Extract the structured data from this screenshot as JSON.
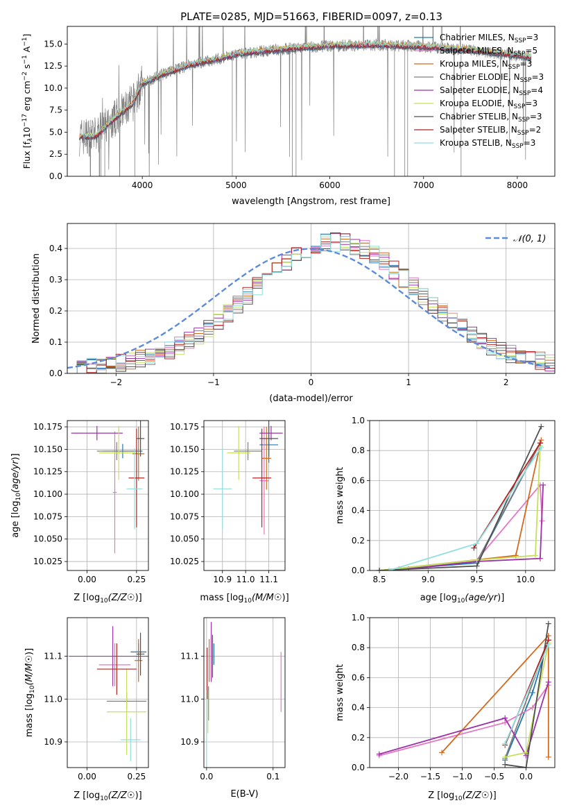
{
  "figure_title": "PLATE=0285, MJD=51663, FIBERID=0097, z=0.13",
  "legend_entries": [
    {
      "name": "Chabrier MILES, N",
      "sub": "SSP",
      "tail": "=3",
      "color": "#1f77b4"
    },
    {
      "name": "Salpeter MILES, N",
      "sub": "SSP",
      "tail": "=5",
      "color": "#e377c2"
    },
    {
      "name": "Kroupa MILES, N",
      "sub": "SSP",
      "tail": "=3",
      "color": "#d2691e"
    },
    {
      "name": "Chabrier ELODIE, N",
      "sub": "SSP",
      "tail": "=3",
      "color": "#7f7f7f"
    },
    {
      "name": "Salpeter ELODIE, N",
      "sub": "SSP",
      "tail": "=4",
      "color": "#9b30a8"
    },
    {
      "name": "Kroupa ELODIE, N",
      "sub": "SSP",
      "tail": "=3",
      "color": "#c5e05a"
    },
    {
      "name": "Chabrier STELIB, N",
      "sub": "SSP",
      "tail": "=3",
      "color": "#505050"
    },
    {
      "name": "Salpeter STELIB, N",
      "sub": "SSP",
      "tail": "=2",
      "color": "#b22222"
    },
    {
      "name": "Kroupa STELIB, N",
      "sub": "SSP",
      "tail": "=3",
      "color": "#8fdfe0"
    }
  ],
  "chart_data": [
    {
      "id": "spectrum",
      "type": "line",
      "xlabel": "wavelength [Angstrom, rest frame]",
      "ylabel": "Flux [f",
      "ylabel_parts": [
        "Flux [f",
        "λ",
        "10",
        "−17",
        " erg cm",
        "−2",
        " s",
        "−1",
        " A",
        "−1",
        "]"
      ],
      "xlim": [
        3200,
        8400
      ],
      "ylim": [
        0,
        17
      ],
      "xticks": [
        "4000",
        "5000",
        "6000",
        "7000",
        "8000"
      ],
      "yticks": [
        "0.0",
        "2.5",
        "5.0",
        "7.5",
        "10.0",
        "12.5",
        "15.0"
      ],
      "continuum": {
        "x": [
          3330,
          3500,
          3700,
          3900,
          4000,
          4200,
          4500,
          4800,
          5000,
          5200,
          5500,
          6000,
          6500,
          7000,
          7500,
          8000,
          8150
        ],
        "y": [
          4.5,
          4.5,
          6.5,
          8.3,
          10.5,
          11.5,
          12.6,
          13.3,
          13.8,
          14.1,
          14.4,
          14.8,
          14.9,
          14.7,
          14.3,
          13.7,
          13.5
        ]
      }
    },
    {
      "id": "residuals",
      "type": "step",
      "xlabel": "(data-model)/error",
      "ylabel": "Normed distribution",
      "xlim": [
        -2.5,
        2.5
      ],
      "ylim": [
        0,
        0.48
      ],
      "xticks": [
        "−2",
        "−1",
        "0",
        "1",
        "2"
      ],
      "yticks": [
        "0.0",
        "0.1",
        "0.2",
        "0.3",
        "0.4"
      ],
      "legend": "𝒩(0, 1)"
    },
    {
      "id": "age_vs_Z",
      "type": "errorbar",
      "xlabel": "Z [log",
      "ylabel": "age  [log",
      "xlim": [
        -0.1,
        0.31
      ],
      "ylim": [
        10.015,
        10.182
      ],
      "xticks": [
        "0.00",
        "0.25"
      ],
      "yticks": [
        "10.025",
        "10.050",
        "10.075",
        "10.100",
        "10.125",
        "10.150",
        "10.175"
      ],
      "points": [
        {
          "x": 0.18,
          "y": 10.148,
          "xerr": 0.1,
          "yerr": 0.008,
          "color": "#1f77b4"
        },
        {
          "x": 0.14,
          "y": 10.102,
          "xerr": 0.01,
          "yerr": 0.068,
          "color": "#e377c2"
        },
        {
          "x": 0.26,
          "y": 10.145,
          "xerr": 0.03,
          "yerr": 0.03,
          "color": "#d2691e"
        },
        {
          "x": 0.15,
          "y": 10.148,
          "xerr": 0.1,
          "yerr": 0.01,
          "color": "#7f7f7f"
        },
        {
          "x": 0.05,
          "y": 10.168,
          "xerr": 0.13,
          "yerr": 0.008,
          "color": "#9b30a8"
        },
        {
          "x": 0.16,
          "y": 10.146,
          "xerr": 0.1,
          "yerr": 0.03,
          "color": "#c5e05a"
        },
        {
          "x": 0.27,
          "y": 10.162,
          "xerr": 0.02,
          "yerr": 0.02,
          "color": "#505050"
        },
        {
          "x": 0.25,
          "y": 10.118,
          "xerr": 0.04,
          "yerr": 0.055,
          "color": "#b22222"
        },
        {
          "x": 0.24,
          "y": 10.106,
          "xerr": 0.04,
          "yerr": 0.045,
          "color": "#8fdfe0"
        }
      ]
    },
    {
      "id": "age_vs_mass",
      "type": "errorbar",
      "xlabel": "mass [log",
      "xlim": [
        10.82,
        11.17
      ],
      "ylim": [
        10.015,
        10.182
      ],
      "xticks": [
        "10.9",
        "11.0",
        "11.1"
      ],
      "yticks": [
        "10.025",
        "10.050",
        "10.075",
        "10.100",
        "10.125",
        "10.150",
        "10.175"
      ],
      "points": [
        {
          "x": 11.1,
          "y": 10.155,
          "xerr": 0.04,
          "yerr": 0.02,
          "color": "#1f77b4"
        },
        {
          "x": 11.08,
          "y": 10.115,
          "xerr": 0.02,
          "yerr": 0.06,
          "color": "#e377c2"
        },
        {
          "x": 11.09,
          "y": 10.14,
          "xerr": 0.02,
          "yerr": 0.035,
          "color": "#d2691e"
        },
        {
          "x": 11.01,
          "y": 10.148,
          "xerr": 0.06,
          "yerr": 0.01,
          "color": "#7f7f7f"
        },
        {
          "x": 11.11,
          "y": 10.168,
          "xerr": 0.05,
          "yerr": 0.008,
          "color": "#9b30a8"
        },
        {
          "x": 10.97,
          "y": 10.146,
          "xerr": 0.05,
          "yerr": 0.03,
          "color": "#c5e05a"
        },
        {
          "x": 11.1,
          "y": 10.162,
          "xerr": 0.04,
          "yerr": 0.02,
          "color": "#505050"
        },
        {
          "x": 11.07,
          "y": 10.118,
          "xerr": 0.04,
          "yerr": 0.055,
          "color": "#b22222"
        },
        {
          "x": 10.9,
          "y": 10.106,
          "xerr": 0.04,
          "yerr": 0.045,
          "color": "#8fdfe0"
        }
      ]
    },
    {
      "id": "mass_weight_vs_age",
      "type": "line",
      "xlabel": "age  [log",
      "ylabel": "mass weight",
      "xlim": [
        8.4,
        10.3
      ],
      "ylim": [
        0,
        1
      ],
      "xticks": [
        "8.5",
        "9.0",
        "9.5",
        "10.0"
      ],
      "yticks": [
        "0.0",
        "0.2",
        "0.4",
        "0.6",
        "0.8",
        "1.0"
      ],
      "series": [
        {
          "color": "#1f77b4",
          "x": [
            8.5,
            9.5,
            10.15
          ],
          "y": [
            0.0,
            0.05,
            0.85
          ]
        },
        {
          "color": "#e377c2",
          "x": [
            8.7,
            9.5,
            10.15,
            10.17
          ],
          "y": [
            0.01,
            0.07,
            0.57,
            0.33
          ]
        },
        {
          "color": "#d2691e",
          "x": [
            8.5,
            9.9,
            10.16
          ],
          "y": [
            0.0,
            0.1,
            0.87
          ]
        },
        {
          "color": "#7f7f7f",
          "x": [
            8.5,
            9.5,
            10.15
          ],
          "y": [
            0.0,
            0.06,
            0.85
          ]
        },
        {
          "color": "#9b30a8",
          "x": [
            8.8,
            9.5,
            10.15,
            10.18
          ],
          "y": [
            0.01,
            0.06,
            0.08,
            0.57
          ]
        },
        {
          "color": "#c5e05a",
          "x": [
            8.5,
            9.5,
            10.1,
            10.15
          ],
          "y": [
            0.0,
            0.07,
            0.1,
            0.83
          ]
        },
        {
          "color": "#505050",
          "x": [
            8.5,
            9.5,
            10.16
          ],
          "y": [
            0.0,
            0.03,
            0.96
          ]
        },
        {
          "color": "#b22222",
          "x": [
            9.47,
            10.15
          ],
          "y": [
            0.15,
            0.85
          ]
        },
        {
          "color": "#8fdfe0",
          "x": [
            8.6,
            9.5,
            10.16
          ],
          "y": [
            0.0,
            0.18,
            0.82
          ]
        }
      ]
    },
    {
      "id": "mass_vs_Z",
      "type": "errorbar",
      "xlabel": "Z [log",
      "ylabel": "mass [log",
      "xlim": [
        -0.1,
        0.31
      ],
      "ylim": [
        10.84,
        11.19
      ],
      "xticks": [
        "0.00",
        "0.25"
      ],
      "yticks": [
        "10.9",
        "11.0",
        "11.1"
      ],
      "points": [
        {
          "x": 0.26,
          "y": 11.11,
          "xerr": 0.04,
          "yerr": 0.02,
          "color": "#1f77b4"
        },
        {
          "x": 0.14,
          "y": 11.08,
          "xerr": 0.08,
          "yerr": 0.05,
          "color": "#e377c2"
        },
        {
          "x": 0.26,
          "y": 11.09,
          "xerr": 0.02,
          "yerr": 0.05,
          "color": "#d2691e"
        },
        {
          "x": 0.2,
          "y": 10.995,
          "xerr": 0.1,
          "yerr": 0.02,
          "color": "#7f7f7f"
        },
        {
          "x": 0.13,
          "y": 11.1,
          "xerr": 0.22,
          "yerr": 0.07,
          "color": "#9b30a8"
        },
        {
          "x": 0.2,
          "y": 10.97,
          "xerr": 0.1,
          "yerr": 0.1,
          "color": "#c5e05a"
        },
        {
          "x": 0.27,
          "y": 11.105,
          "xerr": 0.02,
          "yerr": 0.05,
          "color": "#505050"
        },
        {
          "x": 0.15,
          "y": 11.07,
          "xerr": 0.1,
          "yerr": 0.06,
          "color": "#b22222"
        },
        {
          "x": 0.22,
          "y": 10.905,
          "xerr": 0.05,
          "yerr": 0.05,
          "color": "#8fdfe0"
        }
      ]
    },
    {
      "id": "mass_vs_EBV",
      "type": "errorbar",
      "xlabel": "E(B-V)",
      "xlim": [
        -0.004,
        0.118
      ],
      "ylim": [
        10.84,
        11.19
      ],
      "xticks": [
        "0.0",
        "0.1"
      ],
      "yticks": [
        "10.9",
        "11.0",
        "11.1"
      ],
      "points": [
        {
          "x": 0.011,
          "y": 11.105,
          "xerr": 0,
          "yerr": 0.025,
          "color": "#1f77b4"
        },
        {
          "x": 0.112,
          "y": 11.04,
          "xerr": 0,
          "yerr": 0.07,
          "color": "#e377c2"
        },
        {
          "x": 0.004,
          "y": 11.09,
          "xerr": 0,
          "yerr": 0.05,
          "color": "#d2691e"
        },
        {
          "x": 0.003,
          "y": 10.99,
          "xerr": 0,
          "yerr": 0.04,
          "color": "#7f7f7f"
        },
        {
          "x": 0.007,
          "y": 11.11,
          "xerr": 0,
          "yerr": 0.07,
          "color": "#9b30a8"
        },
        {
          "x": 0.002,
          "y": 10.97,
          "xerr": 0,
          "yerr": 0.05,
          "color": "#c5e05a"
        },
        {
          "x": 0.009,
          "y": 11.1,
          "xerr": 0,
          "yerr": 0.05,
          "color": "#505050"
        },
        {
          "x": 0.001,
          "y": 11.06,
          "xerr": 0,
          "yerr": 0.06,
          "color": "#b22222"
        },
        {
          "x": 0.0,
          "y": 10.93,
          "xerr": 0,
          "yerr": 0.09,
          "color": "#8fdfe0"
        }
      ]
    },
    {
      "id": "mass_weight_vs_Z",
      "type": "line",
      "xlabel": "Z [log",
      "ylabel": "mass weight",
      "xlim": [
        -2.45,
        0.45
      ],
      "ylim": [
        0,
        1
      ],
      "xticks": [
        "−2.0",
        "−1.5",
        "−1.0",
        "−0.5",
        "0.0"
      ],
      "yticks": [
        "0.0",
        "0.2",
        "0.4",
        "0.6",
        "0.8",
        "1.0"
      ],
      "series": [
        {
          "color": "#1f77b4",
          "x": [
            -0.33,
            0.1,
            0.35
          ],
          "y": [
            0.05,
            0.5,
            0.85
          ]
        },
        {
          "color": "#e377c2",
          "x": [
            -2.3,
            -0.33,
            0.1,
            0.35
          ],
          "y": [
            0.08,
            0.3,
            0.4,
            0.55
          ]
        },
        {
          "color": "#d2691e",
          "x": [
            -1.32,
            0.35,
            0.35
          ],
          "y": [
            0.1,
            0.88,
            0.07
          ]
        },
        {
          "color": "#7f7f7f",
          "x": [
            -0.33,
            0.35
          ],
          "y": [
            0.06,
            0.85
          ]
        },
        {
          "color": "#9b30a8",
          "x": [
            -2.3,
            -0.33,
            0.0,
            0.35
          ],
          "y": [
            0.09,
            0.33,
            0.08,
            0.57
          ]
        },
        {
          "color": "#c5e05a",
          "x": [
            -0.33,
            0.0,
            0.35
          ],
          "y": [
            0.07,
            0.1,
            0.83
          ]
        },
        {
          "color": "#505050",
          "x": [
            -0.33,
            0.0,
            0.35
          ],
          "y": [
            0.02,
            0.0,
            0.96
          ]
        },
        {
          "color": "#b22222",
          "x": [
            -0.33,
            0.35
          ],
          "y": [
            0.15,
            0.85
          ]
        },
        {
          "color": "#8fdfe0",
          "x": [
            -0.33,
            0.35
          ],
          "y": [
            0.16,
            0.82
          ]
        }
      ]
    }
  ]
}
